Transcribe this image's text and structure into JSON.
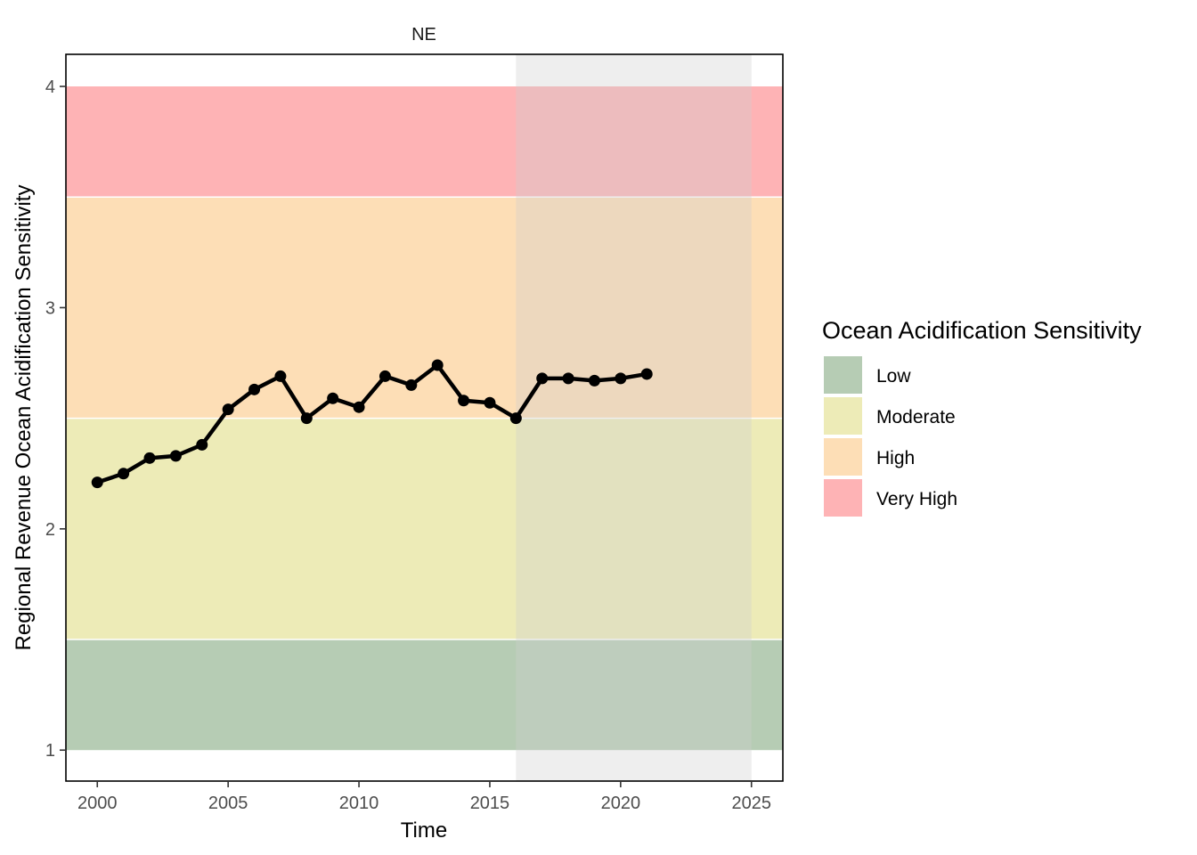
{
  "chart_data": {
    "type": "line",
    "panel_title": "NE",
    "xlabel": "Time",
    "ylabel": "Regional Revenue Ocean Acidification Sensitivity",
    "xlim": [
      1998.8,
      2026.2
    ],
    "ylim": [
      0.86,
      4.145
    ],
    "x_ticks": [
      2000,
      2005,
      2010,
      2015,
      2020,
      2025
    ],
    "y_ticks": [
      1,
      2,
      3,
      4
    ],
    "grid": false,
    "series": [
      {
        "x": [
          2000,
          2001,
          2002,
          2003,
          2004,
          2005,
          2006,
          2007,
          2008,
          2009,
          2010,
          2011,
          2012,
          2013,
          2014,
          2015,
          2016,
          2017,
          2018,
          2019,
          2020,
          2021
        ],
        "values": [
          2.21,
          2.25,
          2.32,
          2.33,
          2.38,
          2.54,
          2.63,
          2.69,
          2.5,
          2.59,
          2.55,
          2.69,
          2.65,
          2.74,
          2.58,
          2.57,
          2.5,
          2.68,
          2.68,
          2.67,
          2.68,
          2.7
        ],
        "color": "#000000"
      }
    ],
    "bands": [
      {
        "label": "Low",
        "ymin": 1.0,
        "ymax": 1.5,
        "color": "#B6CCB4"
      },
      {
        "label": "Moderate",
        "ymin": 1.5,
        "ymax": 2.5,
        "color": "#EDEBB7"
      },
      {
        "label": "High",
        "ymin": 2.5,
        "ymax": 3.5,
        "color": "#FDDEB6"
      },
      {
        "label": "Very High",
        "ymin": 3.5,
        "ymax": 4.0,
        "color": "#FEB3B5"
      }
    ],
    "highlight_range": {
      "xmin": 2016,
      "xmax": 2025,
      "color": "#E5E5E5",
      "opacity": 0.6
    },
    "legend": {
      "title": "Ocean Acidification Sensitivity",
      "position": "right",
      "items": [
        "Low",
        "Moderate",
        "High",
        "Very High"
      ]
    }
  }
}
